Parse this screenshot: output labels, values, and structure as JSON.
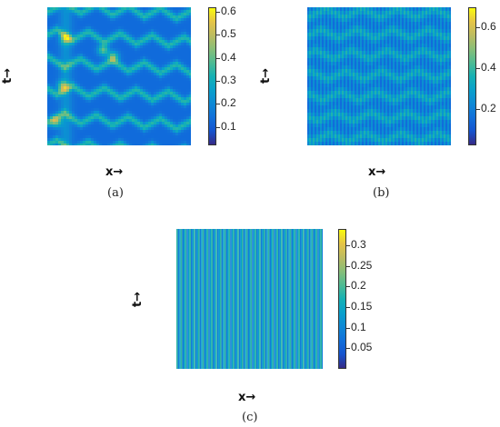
{
  "chart_data": [
    {
      "type": "heatmap",
      "panel": "a",
      "caption": "(a)",
      "xlabel": "x→",
      "ylabel": "t→",
      "colorbar": {
        "ticks": [
          "0.6",
          "0.5",
          "0.4",
          "0.3",
          "0.2",
          "0.1"
        ],
        "tick_values": [
          0.6,
          0.5,
          0.4,
          0.3,
          0.2,
          0.1
        ],
        "range": [
          0.02,
          0.62
        ]
      },
      "colormap": "parula",
      "pattern": "multi-soliton zig-zag with bright crests on the left"
    },
    {
      "type": "heatmap",
      "panel": "b",
      "caption": "(b)",
      "xlabel": "x→",
      "ylabel": "t→",
      "colorbar": {
        "ticks": [
          "0.6",
          "0.4",
          "0.2"
        ],
        "tick_values": [
          0.6,
          0.4,
          0.2
        ],
        "range": [
          0.02,
          0.7
        ]
      },
      "colormap": "parula",
      "pattern": "fine vertical stripes modulated by zig-zag bands"
    },
    {
      "type": "heatmap",
      "panel": "c",
      "caption": "(c)",
      "xlabel": "x→",
      "ylabel": "t→",
      "colorbar": {
        "ticks": [
          "0.3",
          "0.25",
          "0.2",
          "0.15",
          "0.1",
          "0.05"
        ],
        "tick_values": [
          0.3,
          0.25,
          0.2,
          0.15,
          0.1,
          0.05
        ],
        "range": [
          0.0,
          0.34
        ]
      },
      "colormap": "parula",
      "pattern": "uniform dense vertical stripes"
    }
  ]
}
